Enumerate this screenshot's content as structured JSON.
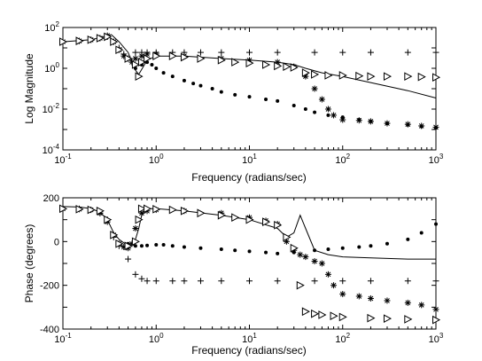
{
  "figure": {
    "background": "#ffffff",
    "foreground": "#000000",
    "marker_legend": {
      "solid_line": "line",
      "plus": "+",
      "asterisk": "*",
      "dot": "•",
      "triangle": "▷"
    }
  },
  "chart_data": [
    {
      "type": "line",
      "title": "",
      "xlabel": "Frequency (radians/sec)",
      "ylabel": "Log Magnitude",
      "xscale": "log",
      "yscale": "log",
      "xlim": [
        0.1,
        1000
      ],
      "ylim": [
        0.0001,
        100
      ],
      "grid": false,
      "x_ticks": [
        {
          "base": "10",
          "exp": "-1"
        },
        {
          "base": "10",
          "exp": "0"
        },
        {
          "base": "10",
          "exp": "1"
        },
        {
          "base": "10",
          "exp": "2"
        },
        {
          "base": "10",
          "exp": "3"
        }
      ],
      "y_ticks": [
        {
          "base": "10",
          "exp": "-4"
        },
        {
          "base": "10",
          "exp": "-2"
        },
        {
          "base": "10",
          "exp": "0"
        },
        {
          "base": "10",
          "exp": "2"
        }
      ],
      "series": [
        {
          "marker": "line",
          "x": [
            0.1,
            0.2,
            0.3,
            0.33,
            0.4,
            0.5,
            0.6,
            0.65,
            0.8,
            1,
            2,
            5,
            10,
            20,
            30,
            40,
            60,
            100,
            200,
            500,
            1000
          ],
          "y": [
            20,
            25,
            40,
            45,
            20,
            6,
            0.8,
            0.5,
            2.5,
            4,
            4,
            3,
            2.5,
            2,
            1.5,
            1.0,
            0.6,
            0.4,
            0.2,
            0.08,
            0.035
          ]
        },
        {
          "marker": "plus",
          "x": [
            0.1,
            0.15,
            0.2,
            0.25,
            0.3,
            0.35,
            0.4,
            0.45,
            0.5,
            0.55,
            0.6,
            0.7,
            0.8,
            1,
            1.5,
            2,
            3,
            5,
            10,
            20,
            50,
            100,
            200,
            500,
            1000
          ],
          "y": [
            20,
            22,
            25,
            30,
            35,
            20,
            10,
            5,
            3,
            2,
            6,
            6,
            6,
            6,
            6,
            6,
            6,
            6,
            6,
            6,
            6,
            6,
            6,
            6,
            6
          ]
        },
        {
          "marker": "asterisk",
          "x": [
            0.1,
            0.15,
            0.2,
            0.25,
            0.3,
            0.35,
            0.4,
            0.45,
            0.5,
            0.55,
            0.6,
            0.7,
            0.8,
            1,
            2,
            5,
            10,
            20,
            30,
            40,
            50,
            60,
            70,
            80,
            100,
            150,
            200,
            300,
            500,
            700,
            1000
          ],
          "y": [
            20,
            22,
            25,
            30,
            40,
            20,
            8,
            4,
            3,
            2,
            3,
            4,
            5,
            5,
            4,
            3,
            2.5,
            2,
            1.2,
            0.4,
            0.1,
            0.03,
            0.01,
            0.005,
            0.003,
            0.0028,
            0.0025,
            0.002,
            0.0018,
            0.0015,
            0.0013
          ]
        },
        {
          "marker": "dot",
          "x": [
            0.6,
            0.7,
            0.8,
            0.9,
            1,
            1.2,
            1.5,
            2,
            2.5,
            3,
            4,
            5,
            7,
            10,
            15,
            20,
            30,
            40,
            50,
            70,
            100,
            150,
            200,
            300,
            500,
            700,
            1000
          ],
          "y": [
            1.0,
            1.5,
            2.0,
            1.5,
            1.0,
            0.6,
            0.4,
            0.25,
            0.18,
            0.14,
            0.1,
            0.07,
            0.05,
            0.04,
            0.03,
            0.025,
            0.015,
            0.01,
            0.007,
            0.005,
            0.004,
            0.003,
            0.0025,
            0.002,
            0.0017,
            0.0014,
            0.0012
          ]
        },
        {
          "marker": "triangle",
          "x": [
            0.1,
            0.15,
            0.2,
            0.25,
            0.3,
            0.35,
            0.4,
            0.5,
            0.6,
            0.65,
            0.7,
            0.8,
            1,
            1.5,
            2,
            3,
            5,
            7,
            10,
            15,
            20,
            25,
            30,
            40,
            50,
            70,
            100,
            150,
            200,
            300,
            500,
            700,
            1000
          ],
          "y": [
            20,
            22,
            25,
            30,
            35,
            20,
            8,
            3,
            1.5,
            0.4,
            2,
            3,
            4,
            4,
            3.5,
            3,
            2.5,
            2,
            1.8,
            1.5,
            1.3,
            1.2,
            1.1,
            0.6,
            0.5,
            0.45,
            0.45,
            0.42,
            0.4,
            0.4,
            0.4,
            0.38,
            0.36
          ]
        }
      ]
    },
    {
      "type": "line",
      "title": "",
      "xlabel": "Frequency (radians/sec)",
      "ylabel": "Phase (degrees)",
      "xscale": "log",
      "yscale": "linear",
      "xlim": [
        0.1,
        1000
      ],
      "ylim": [
        -400,
        200
      ],
      "grid": false,
      "x_ticks": [
        {
          "base": "10",
          "exp": "-1"
        },
        {
          "base": "10",
          "exp": "0"
        },
        {
          "base": "10",
          "exp": "1"
        },
        {
          "base": "10",
          "exp": "2"
        },
        {
          "base": "10",
          "exp": "3"
        }
      ],
      "y_ticks": [
        {
          "base": "-400",
          "exp": ""
        },
        {
          "base": "-200",
          "exp": ""
        },
        {
          "base": "0",
          "exp": ""
        },
        {
          "base": "200",
          "exp": ""
        }
      ],
      "series": [
        {
          "marker": "line",
          "x": [
            0.1,
            0.15,
            0.2,
            0.25,
            0.3,
            0.35,
            0.4,
            0.5,
            0.6,
            0.65,
            0.7,
            0.8,
            1,
            2,
            5,
            10,
            20,
            25,
            30,
            35,
            40,
            50,
            70,
            100,
            200,
            500,
            1000
          ],
          "y": [
            160,
            158,
            150,
            135,
            100,
            40,
            10,
            -20,
            10,
            60,
            120,
            150,
            150,
            140,
            120,
            100,
            60,
            20,
            40,
            120,
            60,
            -40,
            -60,
            -70,
            -75,
            -80,
            -80
          ]
        },
        {
          "marker": "plus",
          "x": [
            0.1,
            0.15,
            0.2,
            0.25,
            0.3,
            0.35,
            0.4,
            0.5,
            0.6,
            0.7,
            0.8,
            1,
            1.5,
            2,
            3,
            5,
            10,
            20,
            50,
            100,
            200,
            500,
            1000
          ],
          "y": [
            150,
            150,
            145,
            130,
            100,
            20,
            -20,
            -80,
            -150,
            -170,
            -180,
            -180,
            -180,
            -180,
            -180,
            -180,
            -180,
            -180,
            -180,
            -180,
            -180,
            -180,
            -180
          ]
        },
        {
          "marker": "asterisk",
          "x": [
            0.1,
            0.15,
            0.2,
            0.25,
            0.3,
            0.35,
            0.4,
            0.45,
            0.5,
            0.55,
            0.6,
            0.7,
            0.8,
            1,
            2,
            5,
            10,
            15,
            20,
            25,
            30,
            35,
            40,
            50,
            60,
            70,
            80,
            100,
            150,
            200,
            300,
            500,
            700,
            1000
          ],
          "y": [
            150,
            148,
            145,
            130,
            90,
            30,
            -10,
            -25,
            -30,
            -10,
            60,
            130,
            140,
            145,
            140,
            130,
            110,
            95,
            80,
            0,
            -40,
            -60,
            -70,
            -90,
            -100,
            -150,
            -200,
            -240,
            -250,
            -260,
            -270,
            -280,
            -290,
            -310
          ]
        },
        {
          "marker": "dot",
          "x": [
            0.5,
            0.6,
            0.7,
            0.8,
            1,
            1.2,
            1.5,
            2,
            3,
            5,
            7,
            10,
            15,
            20,
            30,
            50,
            70,
            100,
            150,
            200,
            300,
            500,
            700,
            1000
          ],
          "y": [
            -10,
            -20,
            -20,
            -18,
            -15,
            -15,
            -20,
            -25,
            -30,
            -35,
            -40,
            -45,
            -50,
            -55,
            -50,
            -40,
            -35,
            -30,
            -25,
            -20,
            -10,
            10,
            40,
            80
          ]
        },
        {
          "marker": "triangle",
          "x": [
            0.1,
            0.15,
            0.2,
            0.25,
            0.3,
            0.35,
            0.4,
            0.5,
            0.6,
            0.65,
            0.7,
            0.8,
            1,
            1.5,
            2,
            3,
            5,
            7,
            10,
            15,
            20,
            25,
            30,
            35,
            40,
            50,
            60,
            80,
            100,
            200,
            300,
            500,
            1000
          ],
          "y": [
            150,
            148,
            145,
            140,
            100,
            30,
            -10,
            -20,
            0,
            100,
            150,
            150,
            148,
            145,
            140,
            130,
            120,
            110,
            100,
            90,
            75,
            20,
            -30,
            -200,
            -320,
            -330,
            -335,
            -340,
            -345,
            -350,
            -352,
            -355,
            -358
          ]
        }
      ]
    }
  ]
}
